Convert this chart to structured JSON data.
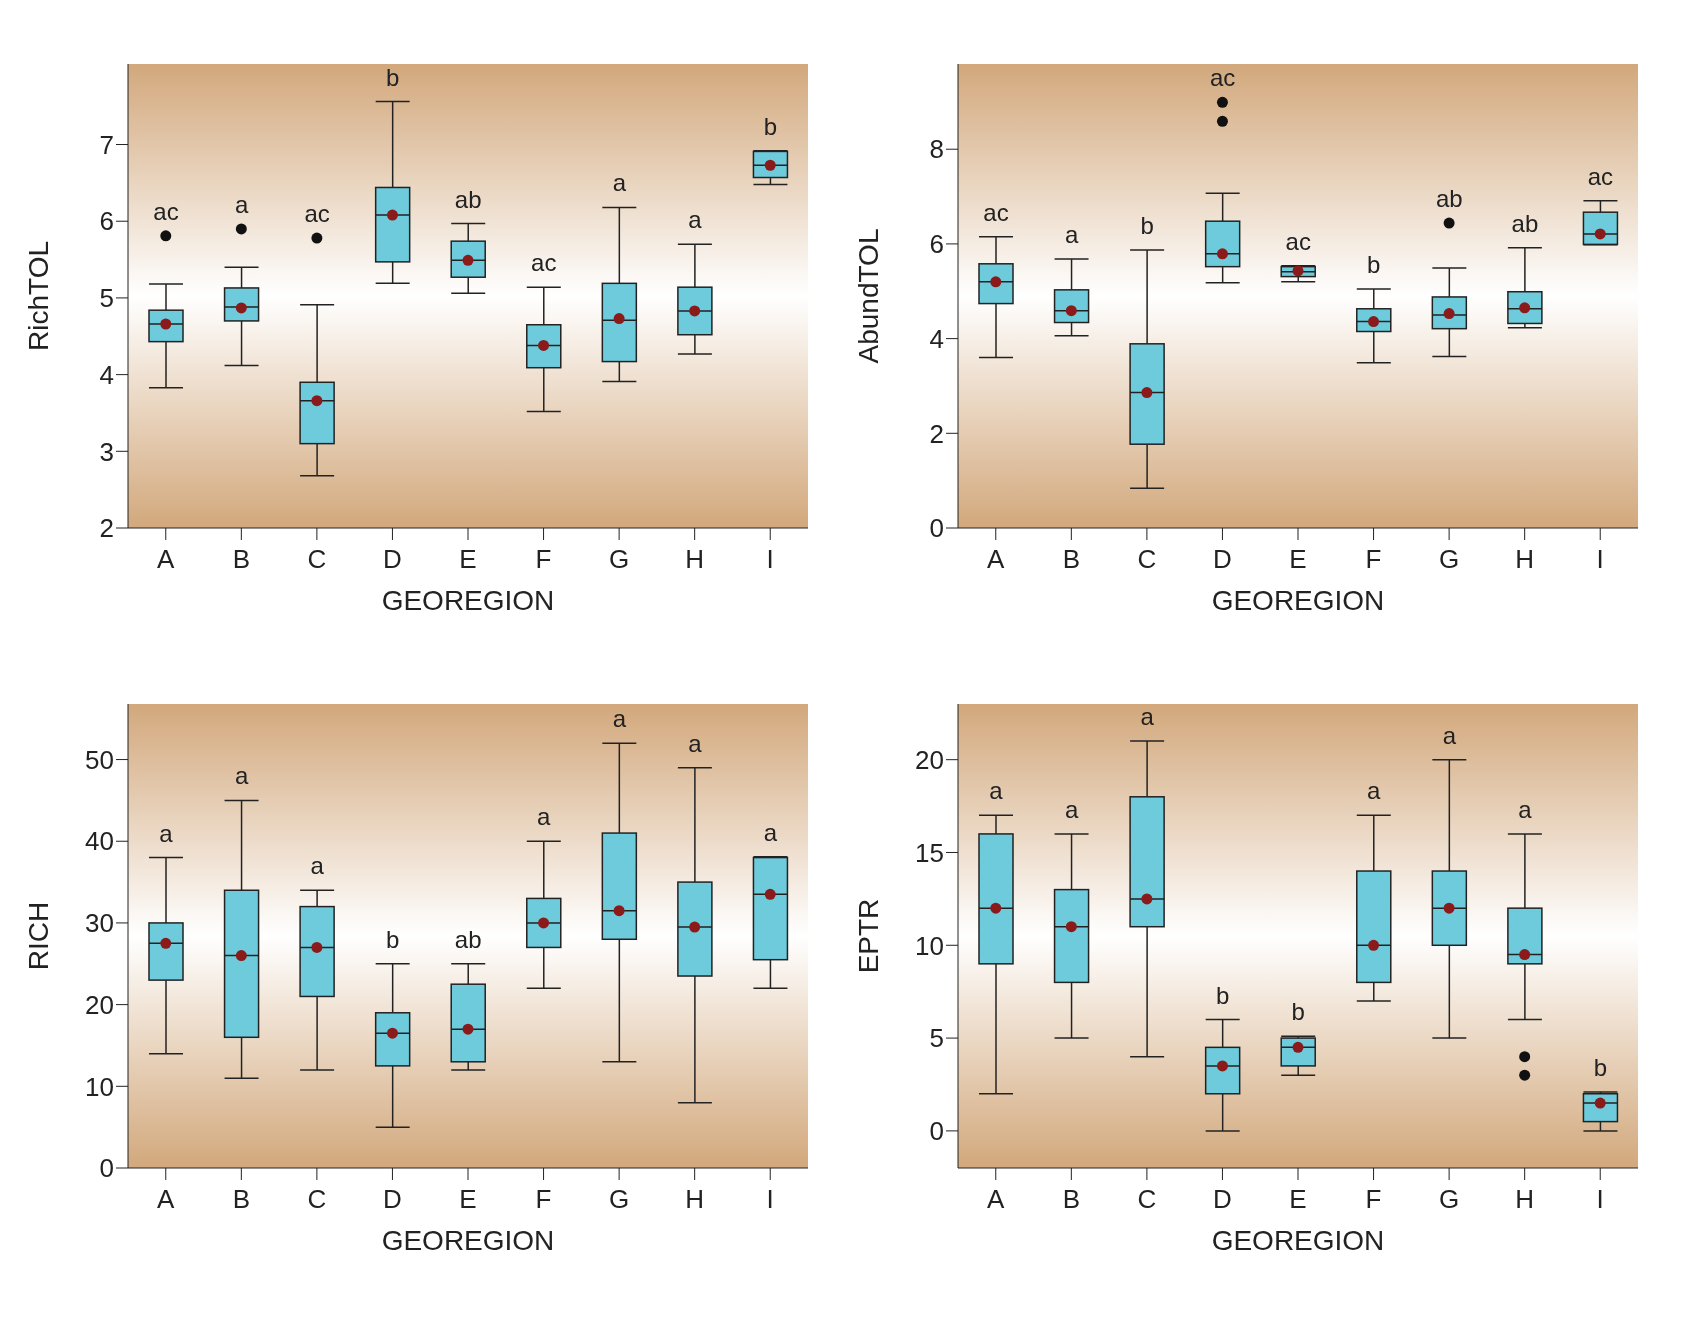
{
  "chart_data": [
    {
      "type": "box",
      "xlabel": "GEOREGION",
      "ylabel": "RichTOL",
      "categories": [
        "A",
        "B",
        "C",
        "D",
        "E",
        "F",
        "G",
        "H",
        "I"
      ],
      "ylim": [
        2,
        8.05
      ],
      "yticks": [
        2,
        3,
        4,
        5,
        6,
        7
      ],
      "grid": false,
      "legend": false,
      "series": [
        {
          "color": "#6ecbdc",
          "boxes": [
            {
              "low": 3.83,
              "q1": 4.43,
              "median": 4.66,
              "q3": 4.84,
              "high": 5.18,
              "mean": 4.66,
              "outliers": [
                5.81
              ]
            },
            {
              "low": 4.12,
              "q1": 4.7,
              "median": 4.88,
              "q3": 5.13,
              "high": 5.4,
              "mean": 4.87,
              "outliers": [
                5.9
              ]
            },
            {
              "low": 2.68,
              "q1": 3.1,
              "median": 3.66,
              "q3": 3.9,
              "high": 4.91,
              "mean": 3.66,
              "outliers": [
                5.78
              ]
            },
            {
              "low": 5.19,
              "q1": 5.47,
              "median": 6.08,
              "q3": 6.44,
              "high": 7.56,
              "mean": 6.08
            },
            {
              "low": 5.06,
              "q1": 5.27,
              "median": 5.49,
              "q3": 5.74,
              "high": 5.97,
              "mean": 5.49
            },
            {
              "low": 3.52,
              "q1": 4.09,
              "median": 4.38,
              "q3": 4.65,
              "high": 5.14,
              "mean": 4.38
            },
            {
              "low": 3.91,
              "q1": 4.17,
              "median": 4.71,
              "q3": 5.19,
              "high": 6.18,
              "mean": 4.73
            },
            {
              "low": 4.27,
              "q1": 4.52,
              "median": 4.83,
              "q3": 5.14,
              "high": 5.7,
              "mean": 4.83
            },
            {
              "low": 6.48,
              "q1": 6.57,
              "median": 6.73,
              "q3": 6.91,
              "high": 6.92,
              "mean": 6.73
            }
          ]
        }
      ],
      "annotations": [
        "ac",
        "a",
        "ac",
        "b",
        "ab",
        "ac",
        "a",
        "a",
        "b"
      ]
    },
    {
      "type": "box",
      "xlabel": "GEOREGION",
      "ylabel": "AbundTOL",
      "categories": [
        "A",
        "B",
        "C",
        "D",
        "E",
        "F",
        "G",
        "H",
        "I"
      ],
      "ylim": [
        0,
        9.8
      ],
      "yticks": [
        0,
        2,
        4,
        6,
        8
      ],
      "grid": false,
      "legend": false,
      "series": [
        {
          "color": "#6ecbdc",
          "boxes": [
            {
              "low": 3.6,
              "q1": 4.74,
              "median": 5.2,
              "q3": 5.58,
              "high": 6.15,
              "mean": 5.2
            },
            {
              "low": 4.06,
              "q1": 4.34,
              "median": 4.59,
              "q3": 5.03,
              "high": 5.68,
              "mean": 4.59
            },
            {
              "low": 0.84,
              "q1": 1.77,
              "median": 2.86,
              "q3": 3.89,
              "high": 5.87,
              "mean": 2.86
            },
            {
              "low": 5.18,
              "q1": 5.52,
              "median": 5.79,
              "q3": 6.48,
              "high": 7.07,
              "mean": 5.79,
              "outliers": [
                8.59,
                8.99
              ]
            },
            {
              "low": 5.2,
              "q1": 5.31,
              "median": 5.41,
              "q3": 5.52,
              "high": 5.54,
              "mean": 5.43
            },
            {
              "low": 3.49,
              "q1": 4.15,
              "median": 4.36,
              "q3": 4.63,
              "high": 5.05,
              "mean": 4.36
            },
            {
              "low": 3.62,
              "q1": 4.21,
              "median": 4.5,
              "q3": 4.88,
              "high": 5.49,
              "mean": 4.53,
              "outliers": [
                6.44
              ]
            },
            {
              "low": 4.23,
              "q1": 4.32,
              "median": 4.63,
              "q3": 4.99,
              "high": 5.92,
              "mean": 4.65
            },
            {
              "low": 5.98,
              "q1": 5.99,
              "median": 6.21,
              "q3": 6.67,
              "high": 6.91,
              "mean": 6.21
            }
          ]
        }
      ],
      "annotations": [
        "ac",
        "a",
        "b",
        "ac",
        "ac",
        "b",
        "ab",
        "ab",
        "ac"
      ]
    },
    {
      "type": "box",
      "xlabel": "GEOREGION",
      "ylabel": "RICH",
      "categories": [
        "A",
        "B",
        "C",
        "D",
        "E",
        "F",
        "G",
        "H",
        "I"
      ],
      "ylim": [
        0,
        56.8
      ],
      "yticks": [
        0,
        10,
        20,
        30,
        40,
        50
      ],
      "grid": false,
      "legend": false,
      "series": [
        {
          "color": "#6ecbdc",
          "boxes": [
            {
              "low": 14,
              "q1": 23,
              "median": 27.5,
              "q3": 30,
              "high": 38,
              "mean": 27.5
            },
            {
              "low": 11,
              "q1": 16,
              "median": 26,
              "q3": 34,
              "high": 45,
              "mean": 26
            },
            {
              "low": 12,
              "q1": 21,
              "median": 27,
              "q3": 32,
              "high": 34,
              "mean": 27
            },
            {
              "low": 5,
              "q1": 12.5,
              "median": 16.5,
              "q3": 19,
              "high": 25,
              "mean": 16.5
            },
            {
              "low": 12,
              "q1": 13,
              "median": 17,
              "q3": 22.5,
              "high": 25,
              "mean": 17
            },
            {
              "low": 22,
              "q1": 27,
              "median": 30,
              "q3": 33,
              "high": 40,
              "mean": 30
            },
            {
              "low": 13,
              "q1": 28,
              "median": 31.5,
              "q3": 41,
              "high": 52,
              "mean": 31.5
            },
            {
              "low": 8,
              "q1": 23.5,
              "median": 29.5,
              "q3": 35,
              "high": 49,
              "mean": 29.5
            },
            {
              "low": 22,
              "q1": 25.5,
              "median": 33.5,
              "q3": 38,
              "high": 38.1,
              "mean": 33.5
            }
          ]
        }
      ],
      "annotations": [
        "a",
        "a",
        "a",
        "b",
        "ab",
        "a",
        "a",
        "a",
        "a"
      ]
    },
    {
      "type": "box",
      "xlabel": "GEOREGION",
      "ylabel": "EPTR",
      "categories": [
        "A",
        "B",
        "C",
        "D",
        "E",
        "F",
        "G",
        "H",
        "I"
      ],
      "ylim": [
        -2,
        23
      ],
      "yticks": [
        0,
        5,
        10,
        15,
        20
      ],
      "grid": false,
      "legend": false,
      "series": [
        {
          "color": "#6ecbdc",
          "boxes": [
            {
              "low": 2,
              "q1": 9,
              "median": 12,
              "q3": 16,
              "high": 17,
              "mean": 12
            },
            {
              "low": 5,
              "q1": 8,
              "median": 11,
              "q3": 13,
              "high": 16,
              "mean": 11
            },
            {
              "low": 4,
              "q1": 11,
              "median": 12.5,
              "q3": 18,
              "high": 21,
              "mean": 12.5
            },
            {
              "low": 0,
              "q1": 2,
              "median": 3.5,
              "q3": 4.5,
              "high": 6,
              "mean": 3.5
            },
            {
              "low": 3,
              "q1": 3.5,
              "median": 4.5,
              "q3": 5,
              "high": 5.1,
              "mean": 4.5
            },
            {
              "low": 7,
              "q1": 8,
              "median": 10,
              "q3": 14,
              "high": 17,
              "mean": 10
            },
            {
              "low": 5,
              "q1": 10,
              "median": 12,
              "q3": 14,
              "high": 20,
              "mean": 12
            },
            {
              "low": 6,
              "q1": 9,
              "median": 9.5,
              "q3": 12,
              "high": 16,
              "mean": 9.5,
              "outliers": [
                4,
                3
              ]
            },
            {
              "low": 0,
              "q1": 0.5,
              "median": 1.5,
              "q3": 2,
              "high": 2.1,
              "mean": 1.5
            }
          ]
        }
      ],
      "annotations": [
        "a",
        "a",
        "a",
        "b",
        "b",
        "a",
        "a",
        "a",
        "b"
      ]
    }
  ]
}
